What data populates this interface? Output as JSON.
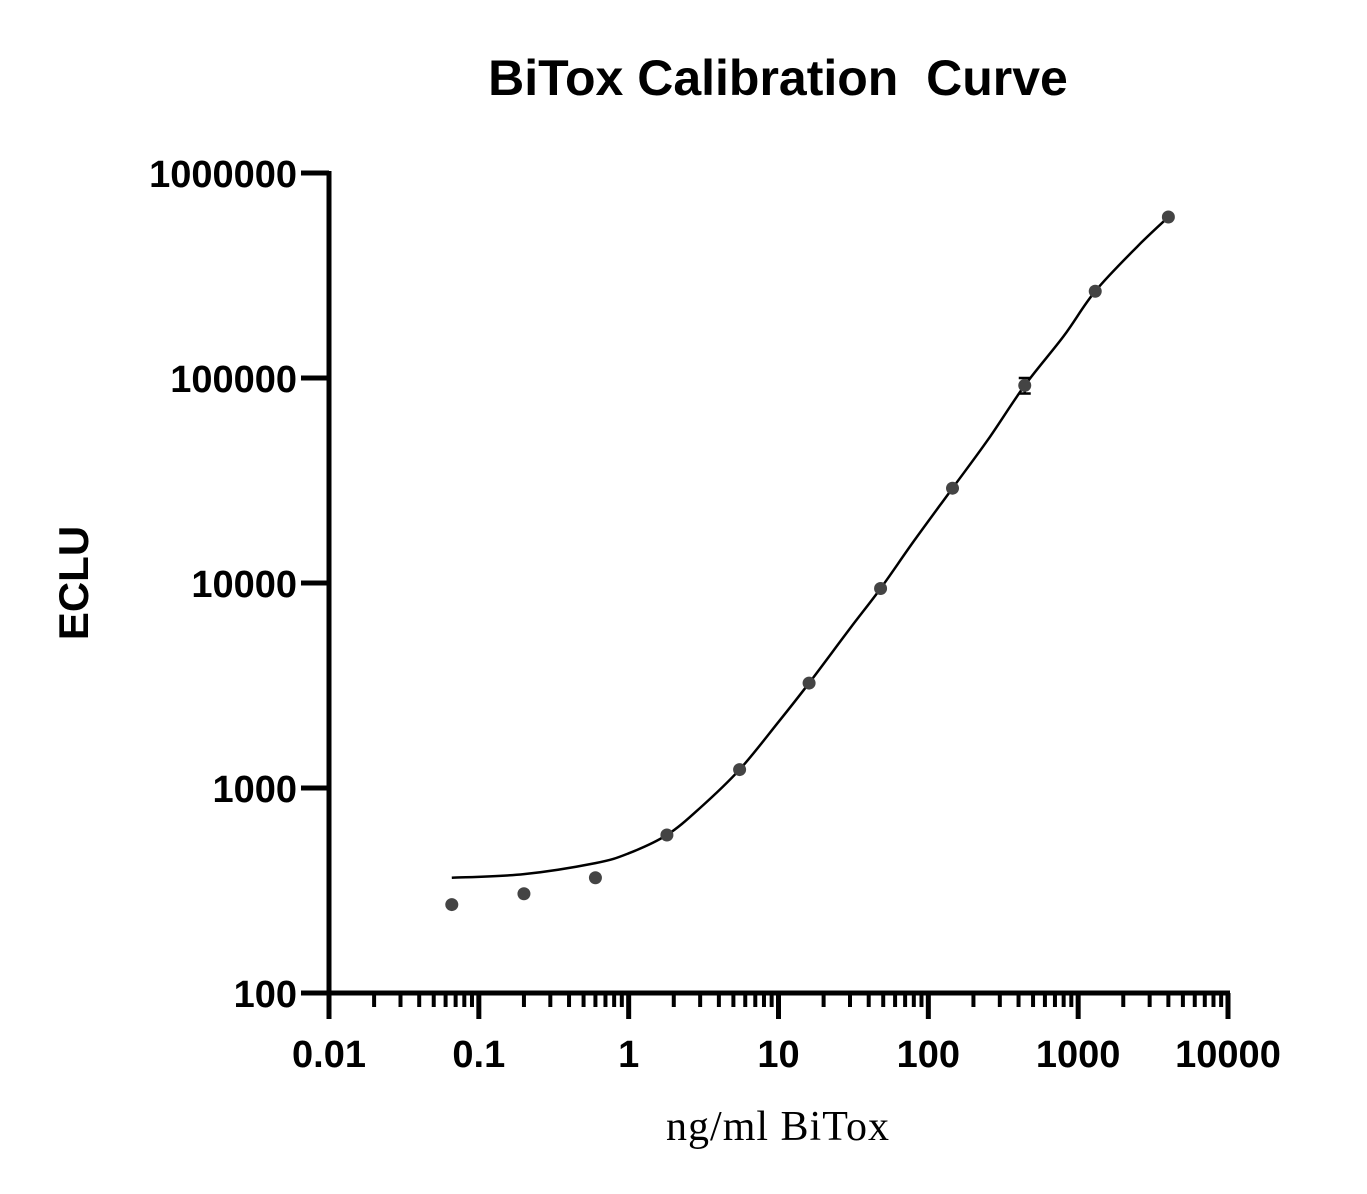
{
  "chart_data": {
    "type": "scatter",
    "title": "BiTox Calibration  Curve",
    "xlabel": "ng/ml BiTox",
    "ylabel": "ECLU",
    "xscale": "log",
    "yscale": "log",
    "xlim": [
      0.01,
      10000
    ],
    "ylim": [
      100,
      1000000
    ],
    "x_ticks": [
      0.01,
      0.1,
      1,
      10,
      100,
      1000,
      10000
    ],
    "x_tick_labels": [
      "0.01",
      "0.1",
      "1",
      "10",
      "100",
      "1000",
      "10000"
    ],
    "y_ticks": [
      100,
      1000,
      10000,
      100000,
      1000000
    ],
    "y_tick_labels": [
      "100",
      "1000",
      "10000",
      "100000",
      "1000000"
    ],
    "grid": false,
    "legend": "none",
    "series": [
      {
        "kind": "points",
        "color": "#444444",
        "x": [
          0.066,
          0.2,
          0.6,
          1.8,
          5.5,
          16,
          48,
          145,
          440,
          1300,
          4000
        ],
        "y": [
          270,
          305,
          365,
          590,
          1230,
          3250,
          9400,
          29000,
          92000,
          265000,
          610000
        ],
        "error": [
          0,
          0,
          0,
          0,
          0,
          0,
          0,
          0,
          8000,
          0,
          0
        ]
      },
      {
        "kind": "fitted-curve",
        "color": "#000000",
        "x": [
          0.066,
          0.2,
          0.6,
          1.0,
          1.8,
          3.0,
          5.5,
          10,
          16,
          30,
          48,
          80,
          145,
          250,
          440,
          800,
          1300,
          2500,
          4000
        ],
        "y": [
          365,
          380,
          430,
          480,
          590,
          800,
          1230,
          2100,
          3250,
          6000,
          9400,
          16000,
          29000,
          50000,
          92000,
          160000,
          265000,
          440000,
          610000
        ]
      }
    ]
  }
}
